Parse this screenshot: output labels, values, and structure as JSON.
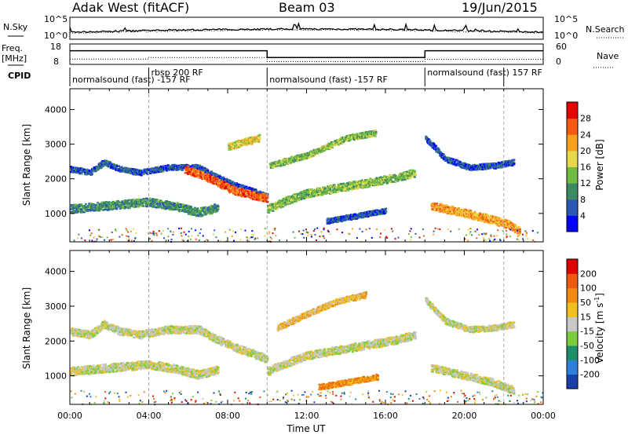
{
  "header": {
    "site": "Adak West (fitACF)",
    "beam": "Beam 03",
    "date": "19/Jun/2015"
  },
  "noise_panel": {
    "left_label": "N.Sky",
    "right_label": "N.Search",
    "left_ticks": [
      "10^5",
      "10^0"
    ],
    "right_ticks": [
      "10^5",
      "10^0"
    ]
  },
  "freq_panel": {
    "left_label_line1": "Freq.",
    "left_label_line2": "[MHz]",
    "left_ticks": [
      "18",
      "8"
    ],
    "right_label": "Nave",
    "right_ticks": [
      "60",
      "0"
    ]
  },
  "cpid_panel": {
    "label": "CPID",
    "segments": [
      {
        "start_hour": 0,
        "end_hour": 4,
        "text": "normalsound (fast) -157 RF"
      },
      {
        "start_hour": 4,
        "end_hour": 10,
        "text": "rbsp 200 RF"
      },
      {
        "start_hour": 10,
        "end_hour": 18,
        "text": "normalsound (fast) -157 RF"
      },
      {
        "start_hour": 18,
        "end_hour": 22,
        "text": "normalsound (fast) 157 RF"
      }
    ]
  },
  "power_colorbar": {
    "label": "Power [dB]",
    "levels": [
      "4",
      "8",
      "12",
      "16",
      "20",
      "24",
      "28"
    ],
    "colors": [
      "#0000ff",
      "#2a58b4",
      "#3c8a64",
      "#6fbb44",
      "#e6d84a",
      "#f7a020",
      "#f45a14",
      "#e60000"
    ]
  },
  "velocity_colorbar": {
    "label_main": "Velocity [m s",
    "label_sup": "-1",
    "label_end": "]",
    "levels": [
      "200",
      "100",
      "50",
      "15",
      "-15",
      "-50",
      "-100",
      "-200"
    ],
    "colors": [
      "#1a3ea8",
      "#2f7fd8",
      "#1f8c6a",
      "#7ccd3c",
      "#c8c8c8",
      "#f0c020",
      "#f08a10",
      "#ee5a10",
      "#e00000"
    ]
  },
  "axes": {
    "ylabel": "Slant Range [km]",
    "y_ticks": [
      "1000",
      "2000",
      "3000",
      "4000"
    ],
    "x_ticks": [
      "00:00",
      "04:00",
      "08:00",
      "12:00",
      "16:00",
      "20:00",
      "00:00"
    ],
    "xlabel": "Time UT"
  },
  "chart_data": {
    "type": "heatmap",
    "title": "Adak West (fitACF)",
    "xlabel": "Time UT",
    "ylabel": "Slant Range [km]",
    "xlim_hours": [
      0,
      24
    ],
    "ylim_km": [
      180,
      4600
    ],
    "vertical_dashed_lines_hours": [
      4,
      10,
      22
    ],
    "power_bands": [
      {
        "points": [
          [
            0,
            2300
          ],
          [
            1,
            2200
          ],
          [
            1.7,
            2500
          ],
          [
            2.5,
            2300
          ],
          [
            3.5,
            2200
          ],
          [
            5,
            2350
          ],
          [
            6.5,
            2350
          ],
          [
            7.3,
            2100
          ],
          [
            8.5,
            1800
          ],
          [
            9.3,
            1650
          ],
          [
            10,
            1500
          ]
        ],
        "thickness_km": 160,
        "color_index": 1
      },
      {
        "points": [
          [
            5.8,
            2300
          ],
          [
            7.2,
            2000
          ],
          [
            8.2,
            1700
          ],
          [
            9.2,
            1550
          ],
          [
            10,
            1450
          ]
        ],
        "thickness_km": 220,
        "color_index": 6
      },
      {
        "points": [
          [
            0,
            1150
          ],
          [
            2,
            1250
          ],
          [
            4,
            1350
          ],
          [
            5.5,
            1200
          ],
          [
            6.5,
            1050
          ],
          [
            7.5,
            1200
          ]
        ],
        "thickness_km": 240,
        "color_index": 2
      },
      {
        "points": [
          [
            10,
            1150
          ],
          [
            11,
            1400
          ],
          [
            12,
            1600
          ],
          [
            13.5,
            1750
          ],
          [
            15,
            1900
          ],
          [
            16.5,
            2050
          ],
          [
            17.5,
            2200
          ]
        ],
        "thickness_km": 230,
        "color_index": 3
      },
      {
        "points": [
          [
            13,
            800
          ],
          [
            14.5,
            950
          ],
          [
            16,
            1100
          ]
        ],
        "thickness_km": 150,
        "color_index": 1
      },
      {
        "points": [
          [
            8,
            2950
          ],
          [
            9.6,
            3200
          ]
        ],
        "thickness_km": 200,
        "color_index": 4
      },
      {
        "points": [
          [
            10.1,
            2400
          ],
          [
            12,
            2700
          ],
          [
            14,
            3200
          ],
          [
            15.5,
            3350
          ]
        ],
        "thickness_km": 170,
        "color_index": 3
      },
      {
        "points": [
          [
            18,
            3200
          ],
          [
            19,
            2600
          ],
          [
            20.2,
            2350
          ],
          [
            21.5,
            2400
          ],
          [
            22.5,
            2500
          ]
        ],
        "thickness_km": 160,
        "color_index": 1
      },
      {
        "points": [
          [
            18.3,
            1250
          ],
          [
            19.8,
            1050
          ],
          [
            21.3,
            850
          ],
          [
            22.2,
            700
          ],
          [
            22.8,
            500
          ]
        ],
        "thickness_km": 240,
        "color_index": 5
      }
    ],
    "velocity_bands": [
      {
        "points": [
          [
            0,
            2300
          ],
          [
            1,
            2200
          ],
          [
            1.7,
            2500
          ],
          [
            2.5,
            2300
          ],
          [
            3.5,
            2200
          ],
          [
            5,
            2350
          ],
          [
            6.5,
            2350
          ],
          [
            7.3,
            2100
          ],
          [
            8.5,
            1800
          ],
          [
            9.3,
            1650
          ],
          [
            10,
            1500
          ]
        ],
        "thickness_km": 220,
        "color_index": 4
      },
      {
        "points": [
          [
            0,
            1150
          ],
          [
            2,
            1250
          ],
          [
            4,
            1350
          ],
          [
            5.5,
            1200
          ],
          [
            6.5,
            1050
          ],
          [
            7.5,
            1200
          ]
        ],
        "thickness_km": 240,
        "color_index": 4
      },
      {
        "points": [
          [
            10,
            1150
          ],
          [
            11,
            1400
          ],
          [
            12,
            1600
          ],
          [
            13.5,
            1750
          ],
          [
            15,
            1900
          ],
          [
            16.5,
            2050
          ],
          [
            17.5,
            2200
          ]
        ],
        "thickness_km": 230,
        "color_index": 4
      },
      {
        "points": [
          [
            10.5,
            2400
          ],
          [
            12,
            2800
          ],
          [
            13.5,
            3150
          ],
          [
            15,
            3350
          ]
        ],
        "thickness_km": 170,
        "color_index": 5
      },
      {
        "points": [
          [
            12.6,
            700
          ],
          [
            14.2,
            850
          ],
          [
            15.6,
            1000
          ]
        ],
        "thickness_km": 160,
        "color_index": 6
      },
      {
        "points": [
          [
            18,
            3200
          ],
          [
            19,
            2600
          ],
          [
            20.2,
            2350
          ],
          [
            21.5,
            2400
          ],
          [
            22.5,
            2500
          ]
        ],
        "thickness_km": 170,
        "color_index": 4
      },
      {
        "points": [
          [
            18.3,
            1250
          ],
          [
            19.8,
            1050
          ],
          [
            21.3,
            850
          ],
          [
            22.5,
            600
          ]
        ],
        "thickness_km": 220,
        "color_index": 4
      }
    ],
    "freq_mhz": [
      [
        0,
        15.6
      ],
      [
        10,
        15.6
      ],
      [
        10,
        11.0
      ],
      [
        18,
        11.0
      ],
      [
        18,
        15.6
      ],
      [
        24,
        15.6
      ]
    ],
    "nave": [
      [
        0,
        12
      ],
      [
        4,
        12
      ],
      [
        4,
        18
      ],
      [
        10,
        18
      ],
      [
        10,
        2
      ],
      [
        18,
        2
      ],
      [
        18,
        11
      ],
      [
        24,
        11
      ]
    ]
  }
}
